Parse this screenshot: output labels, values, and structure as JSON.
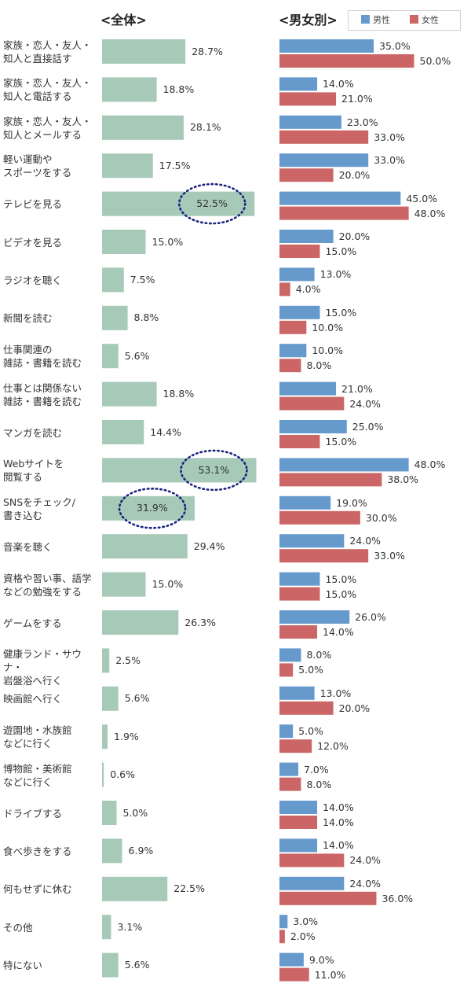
{
  "titles": {
    "overall": "<全体>",
    "gender": "<男女別>"
  },
  "legend": [
    {
      "label": "男性",
      "color": "#6699cc"
    },
    {
      "label": "女性",
      "color": "#cc6666"
    }
  ],
  "colors": {
    "overall": "#a6c9b8",
    "male": "#6699cc",
    "female": "#cc6666",
    "highlight_circle": "#1a237e"
  },
  "chart_data": [
    {
      "type": "bar",
      "orientation": "horizontal",
      "title": "<全体>",
      "categories": [
        "家族・恋人・友人・\n知人と直接話す",
        "家族・恋人・友人・\n知人と電話する",
        "家族・恋人・友人・\n知人とメールする",
        "軽い運動や\nスポーツをする",
        "テレビを見る",
        "ビデオを見る",
        "ラジオを聴く",
        "新聞を読む",
        "仕事関連の\n雑誌・書籍を読む",
        "仕事とは関係ない\n雑誌・書籍を読む",
        "マンガを読む",
        "Webサイトを\n閲覧する",
        "SNSをチェック/\n書き込む",
        "音楽を聴く",
        "資格や習い事、語学\nなどの勉強をする",
        "ゲームをする",
        "健康ランド・サウナ・\n岩盤浴へ行く",
        "映画館へ行く",
        "遊園地・水族館\nなどに行く",
        "博物館・美術館\nなどに行く",
        "ドライブする",
        "食べ歩きをする",
        "何もせずに休む",
        "その他",
        "特にない"
      ],
      "values": [
        28.7,
        18.8,
        28.1,
        17.5,
        52.5,
        15.0,
        7.5,
        8.8,
        5.6,
        18.8,
        14.4,
        53.1,
        31.9,
        29.4,
        15.0,
        26.3,
        2.5,
        5.6,
        1.9,
        0.6,
        5.0,
        6.9,
        22.5,
        3.1,
        5.6
      ],
      "value_labels": [
        "28.7%",
        "18.8%",
        "28.1%",
        "17.5%",
        "52.5%",
        "15.0%",
        "7.5%",
        "8.8%",
        "5.6%",
        "18.8%",
        "14.4%",
        "53.1%",
        "31.9%",
        "29.4%",
        "15.0%",
        "26.3%",
        "2.5%",
        "5.6%",
        "1.9%",
        "0.6%",
        "5.0%",
        "6.9%",
        "22.5%",
        "3.1%",
        "5.6%"
      ],
      "highlighted_indices": [
        4,
        11,
        12
      ],
      "xlim": [
        0,
        60
      ],
      "unit": "%",
      "grid": false,
      "legend": "none"
    },
    {
      "type": "bar",
      "orientation": "horizontal",
      "title": "<男女別>",
      "series": [
        {
          "name": "男性",
          "values": [
            35.0,
            14.0,
            23.0,
            33.0,
            45.0,
            20.0,
            13.0,
            15.0,
            10.0,
            21.0,
            25.0,
            48.0,
            19.0,
            24.0,
            15.0,
            26.0,
            8.0,
            13.0,
            5.0,
            7.0,
            14.0,
            14.0,
            24.0,
            3.0,
            9.0
          ],
          "value_labels": [
            "35.0%",
            "14.0%",
            "23.0%",
            "33.0%",
            "45.0%",
            "20.0%",
            "13.0%",
            "15.0%",
            "10.0%",
            "21.0%",
            "25.0%",
            "48.0%",
            "19.0%",
            "24.0%",
            "15.0%",
            "26.0%",
            "8.0%",
            "13.0%",
            "5.0%",
            "7.0%",
            "14.0%",
            "14.0%",
            "24.0%",
            "3.0%",
            "9.0%"
          ]
        },
        {
          "name": "女性",
          "values": [
            50.0,
            21.0,
            33.0,
            20.0,
            48.0,
            15.0,
            4.0,
            10.0,
            8.0,
            24.0,
            15.0,
            38.0,
            30.0,
            33.0,
            15.0,
            14.0,
            5.0,
            20.0,
            12.0,
            8.0,
            14.0,
            24.0,
            36.0,
            2.0,
            11.0
          ],
          "value_labels": [
            "50.0%",
            "21.0%",
            "33.0%",
            "20.0%",
            "48.0%",
            "15.0%",
            "4.0%",
            "10.0%",
            "8.0%",
            "24.0%",
            "15.0%",
            "38.0%",
            "30.0%",
            "33.0%",
            "15.0%",
            "14.0%",
            "5.0%",
            "20.0%",
            "12.0%",
            "8.0%",
            "14.0%",
            "24.0%",
            "36.0%",
            "2.0%",
            "11.0%"
          ]
        }
      ],
      "xlim": [
        0,
        60
      ],
      "unit": "%",
      "grid": false,
      "legend": "top-right"
    }
  ]
}
